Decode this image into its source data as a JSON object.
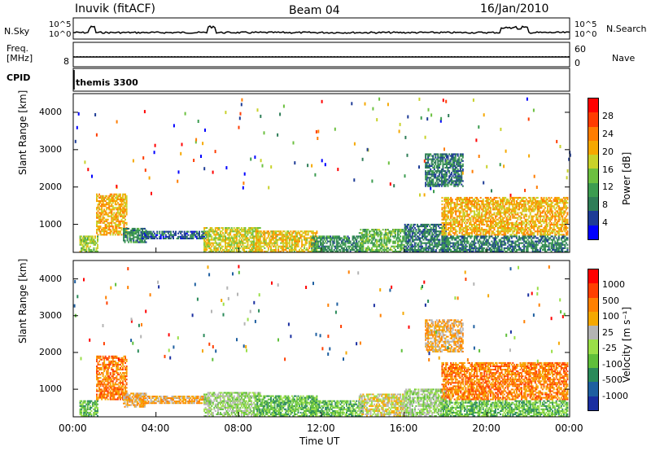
{
  "header": {
    "station": "Inuvik (fitACF)",
    "beam": "Beam 04",
    "date": "16/Jan/2010"
  },
  "top_panel": {
    "left_label": "N.Sky",
    "left_ticks": [
      "10^5",
      "10^0"
    ],
    "right_ticks": [
      "10^5",
      "10^0"
    ],
    "right_label": "N.Search"
  },
  "freq_panel": {
    "left_label_1": "Freq.",
    "left_label_2": "[MHz]",
    "left_tick": "8",
    "right_ticks": [
      "60",
      "0"
    ],
    "right_label": "Nave"
  },
  "cpid_panel": {
    "label": "CPID",
    "value": "themis 3300"
  },
  "colors": {
    "power_scale": [
      "#0000ff",
      "#1e3c96",
      "#2e7d57",
      "#3c9c50",
      "#6cc040",
      "#c8d22a",
      "#f6a800",
      "#ff7d00",
      "#ff3c00",
      "#ff0000"
    ],
    "velocity_scale": [
      "#1a2fa0",
      "#1e5fa0",
      "#2a8a5a",
      "#5fbf3a",
      "#9adf48",
      "#b4b4b4",
      "#f5a800",
      "#ff8000",
      "#ff4000",
      "#ff0000"
    ]
  },
  "chart_data": [
    {
      "type": "heatmap",
      "name": "power",
      "ylabel": "Slant Range [km]",
      "yticks": [
        "1000",
        "2000",
        "3000",
        "4000"
      ],
      "ylim": [
        250,
        4500
      ],
      "xlim_hours": [
        0,
        24
      ],
      "colorbar_label": "Power [dB]",
      "colorbar_ticks": [
        "4",
        "8",
        "12",
        "16",
        "20",
        "24",
        "28"
      ],
      "clim": [
        0,
        32
      ],
      "echo_regions": [
        {
          "t0": 0.3,
          "t1": 1.2,
          "r0": 250,
          "r1": 700,
          "level": 18
        },
        {
          "t0": 1.1,
          "t1": 2.6,
          "r0": 700,
          "r1": 1800,
          "level": 24
        },
        {
          "t0": 2.4,
          "t1": 3.5,
          "r0": 500,
          "r1": 900,
          "level": 10
        },
        {
          "t0": 3.3,
          "t1": 6.5,
          "r0": 600,
          "r1": 800,
          "level": 6
        },
        {
          "t0": 6.3,
          "t1": 9.0,
          "r0": 250,
          "r1": 900,
          "level": 20
        },
        {
          "t0": 8.8,
          "t1": 11.8,
          "r0": 250,
          "r1": 800,
          "level": 22
        },
        {
          "t0": 11.5,
          "t1": 14.0,
          "r0": 250,
          "r1": 700,
          "level": 10
        },
        {
          "t0": 13.8,
          "t1": 16.0,
          "r0": 250,
          "r1": 850,
          "level": 14
        },
        {
          "t0": 16.0,
          "t1": 18.0,
          "r0": 250,
          "r1": 1000,
          "level": 8
        },
        {
          "t0": 17.8,
          "t1": 23.9,
          "r0": 700,
          "r1": 1700,
          "level": 24
        },
        {
          "t0": 17.8,
          "t1": 23.9,
          "r0": 250,
          "r1": 700,
          "level": 8
        },
        {
          "t0": 17.0,
          "t1": 18.8,
          "r0": 2000,
          "r1": 2900,
          "level": 8
        }
      ]
    },
    {
      "type": "heatmap",
      "name": "velocity",
      "ylabel": "Slant Range [km]",
      "yticks": [
        "1000",
        "2000",
        "3000",
        "4000"
      ],
      "ylim": [
        250,
        4500
      ],
      "xlim_hours": [
        0,
        24
      ],
      "colorbar_label": "Velocity [m s⁻¹]",
      "colorbar_ticks": [
        "1000",
        "500",
        "100",
        "25",
        "-25",
        "-100",
        "-500",
        "-1000"
      ],
      "echo_regions": [
        {
          "t0": 0.3,
          "t1": 1.2,
          "r0": 250,
          "r1": 700,
          "level": 3
        },
        {
          "t0": 1.1,
          "t1": 2.6,
          "r0": 700,
          "r1": 1900,
          "level": 7
        },
        {
          "t0": 2.4,
          "t1": 3.5,
          "r0": 500,
          "r1": 900,
          "level": 6
        },
        {
          "t0": 3.3,
          "t1": 6.5,
          "r0": 600,
          "r1": 800,
          "level": 6
        },
        {
          "t0": 6.3,
          "t1": 9.0,
          "r0": 250,
          "r1": 900,
          "level": 4
        },
        {
          "t0": 8.8,
          "t1": 11.8,
          "r0": 250,
          "r1": 800,
          "level": 3
        },
        {
          "t0": 11.5,
          "t1": 14.0,
          "r0": 250,
          "r1": 700,
          "level": 3
        },
        {
          "t0": 13.8,
          "t1": 16.0,
          "r0": 250,
          "r1": 850,
          "level": 5
        },
        {
          "t0": 16.0,
          "t1": 18.0,
          "r0": 250,
          "r1": 1000,
          "level": 4
        },
        {
          "t0": 17.8,
          "t1": 23.9,
          "r0": 700,
          "r1": 1700,
          "level": 7
        },
        {
          "t0": 17.8,
          "t1": 23.9,
          "r0": 250,
          "r1": 700,
          "level": 3
        },
        {
          "t0": 17.0,
          "t1": 18.8,
          "r0": 2000,
          "r1": 2900,
          "level": 6
        }
      ]
    }
  ],
  "xaxis": {
    "ticks": [
      "00:00",
      "04:00",
      "08:00",
      "12:00",
      "16:00",
      "20:00",
      "00:00"
    ],
    "label": "Time UT"
  }
}
